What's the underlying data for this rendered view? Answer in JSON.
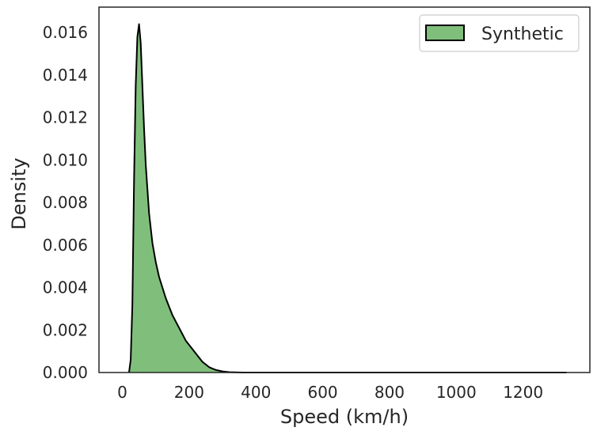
{
  "chart_data": {
    "type": "area",
    "title": "",
    "xlabel": "Speed (km/h)",
    "ylabel": "Density",
    "xlim": [
      -70,
      1400
    ],
    "ylim": [
      0,
      0.0172
    ],
    "xticks": [
      0,
      200,
      400,
      600,
      800,
      1000,
      1200
    ],
    "xtick_labels": [
      "0",
      "200",
      "400",
      "600",
      "800",
      "1000",
      "1200"
    ],
    "yticks": [
      0,
      0.002,
      0.004,
      0.006,
      0.008,
      0.01,
      0.012,
      0.014,
      0.016
    ],
    "ytick_labels": [
      "0.000",
      "0.002",
      "0.004",
      "0.006",
      "0.008",
      "0.010",
      "0.012",
      "0.014",
      "0.016"
    ],
    "grid": false,
    "legend_position": "top-right",
    "series": [
      {
        "name": "Synthetic",
        "color": "#7fbf7b",
        "edge_color": "#000000",
        "x": [
          20,
          25,
          30,
          35,
          40,
          45,
          50,
          55,
          60,
          65,
          70,
          80,
          90,
          100,
          110,
          120,
          130,
          140,
          150,
          160,
          170,
          180,
          190,
          200,
          220,
          240,
          260,
          280,
          300,
          320,
          340,
          360,
          400,
          500,
          700,
          1000,
          1330
        ],
        "y": [
          0,
          0.0006,
          0.0032,
          0.009,
          0.0135,
          0.0158,
          0.0164,
          0.0155,
          0.0135,
          0.0115,
          0.0098,
          0.0075,
          0.0061,
          0.0052,
          0.0045,
          0.004,
          0.0035,
          0.0031,
          0.0027,
          0.0024,
          0.0021,
          0.0018,
          0.0015,
          0.0013,
          0.0009,
          0.0005,
          0.00025,
          0.00012,
          5e-05,
          2e-05,
          1e-05,
          0,
          0,
          0,
          0,
          0,
          0
        ]
      }
    ]
  }
}
